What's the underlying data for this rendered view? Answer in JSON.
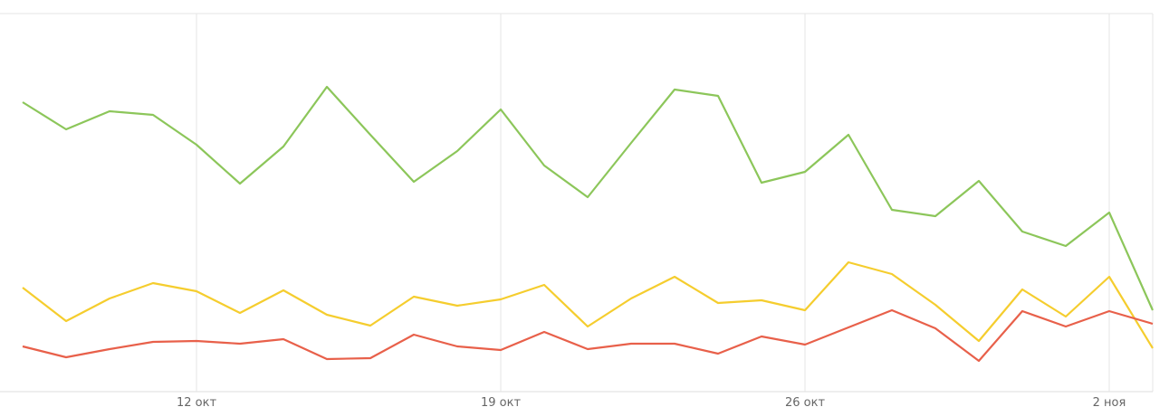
{
  "chart_data": {
    "type": "line",
    "categories": [
      null,
      null,
      null,
      null,
      "12 окт",
      null,
      null,
      null,
      null,
      null,
      null,
      "19 окт",
      null,
      null,
      null,
      null,
      null,
      null,
      "26 окт",
      null,
      null,
      null,
      null,
      null,
      null,
      "2 ноя",
      null
    ],
    "ylim": [
      0,
      418
    ],
    "series": [
      {
        "color": "#8cc65a",
        "values": [
          320,
          290,
          310,
          306,
          273,
          230,
          271,
          337,
          284,
          232,
          266,
          312,
          250,
          215,
          275,
          334,
          327,
          231,
          243,
          284,
          201,
          194,
          233,
          177,
          161,
          198,
          90
        ]
      },
      {
        "color": "#f5cd2e",
        "values": [
          115,
          78,
          103,
          120,
          111,
          87,
          112,
          85,
          73,
          105,
          95,
          102,
          118,
          72,
          103,
          127,
          98,
          101,
          90,
          143,
          130,
          96,
          56,
          113,
          83,
          127,
          48
        ]
      },
      {
        "color": "#e8604a",
        "values": [
          50,
          38,
          47,
          55,
          56,
          53,
          58,
          36,
          37,
          63,
          50,
          46,
          66,
          47,
          53,
          53,
          42,
          61,
          52,
          71,
          90,
          70,
          34,
          89,
          72,
          89,
          75
        ]
      }
    ]
  }
}
